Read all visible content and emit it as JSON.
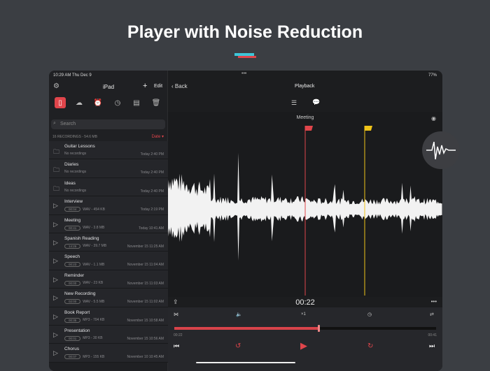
{
  "headline": "Player with Noise Reduction",
  "status": {
    "time": "10:29 AM",
    "date": "Thu Dec 9",
    "battery": "77%"
  },
  "sidebar": {
    "title": "iPad",
    "edit": "Edit",
    "search_placeholder": "Search",
    "meta": "16 RECORDINGS - 54.6 MB",
    "sort": "Date ▾",
    "tabs": [
      "ipad-icon",
      "cloud-icon",
      "alarm-icon",
      "clock-icon",
      "calendar-icon",
      "trash-icon"
    ],
    "items": [
      {
        "type": "folder",
        "name": "Guitar Lessons",
        "sub": "No recordings",
        "date": "Today 2:40 PM"
      },
      {
        "type": "folder",
        "name": "Diaries",
        "sub": "No recordings",
        "date": "Today 2:40 PM"
      },
      {
        "type": "folder",
        "name": "Ideas",
        "sub": "No recordings",
        "date": "Today 2:40 PM"
      },
      {
        "type": "rec",
        "name": "Interview",
        "dur": "00:04",
        "sub": "WAV - 454 KB",
        "date": "Today 2:19 PM"
      },
      {
        "type": "rec",
        "name": "Meeting",
        "dur": "00:41",
        "sub": "WAV - 3.8 MB",
        "date": "Today 10:41 AM"
      },
      {
        "type": "rec",
        "name": "Spanish Reading",
        "dur": "14:26",
        "sub": "WAV - 39.7 MB",
        "date": "November 15 11:25 AM"
      },
      {
        "type": "rec",
        "name": "Speech",
        "dur": "00:23",
        "sub": "WAV - 1.1 MB",
        "date": "November 15 11:04 AM"
      },
      {
        "type": "rec",
        "name": "Reminder",
        "dur": "00:00",
        "sub": "WAV - 23 KB",
        "date": "November 15 11:03 AM"
      },
      {
        "type": "rec",
        "name": "New Recording",
        "dur": "02:00",
        "sub": "WAV - 5.5 MB",
        "date": "November 15 11:02 AM"
      },
      {
        "type": "rec",
        "name": "Book Report",
        "dur": "00:35",
        "sub": "MP3 - 704 KB",
        "date": "November 15 10:58 AM"
      },
      {
        "type": "rec",
        "name": "Presentation",
        "dur": "00:01",
        "sub": "MP3 - 30 KB",
        "date": "November 15 10:56 AM"
      },
      {
        "type": "rec",
        "name": "Chorus",
        "dur": "00:07",
        "sub": "MP3 - 155 KB",
        "date": "November 10 10:45 AM"
      }
    ]
  },
  "player": {
    "back": "Back",
    "title": "Playback",
    "recording": "Meeting",
    "current": "00:22",
    "elapsed": "00:22",
    "total": "00:41",
    "speed": "×1",
    "progress": 0.55,
    "accent": "#e0454b",
    "marker_colors": [
      "#e0454b",
      "#f0c419"
    ]
  }
}
